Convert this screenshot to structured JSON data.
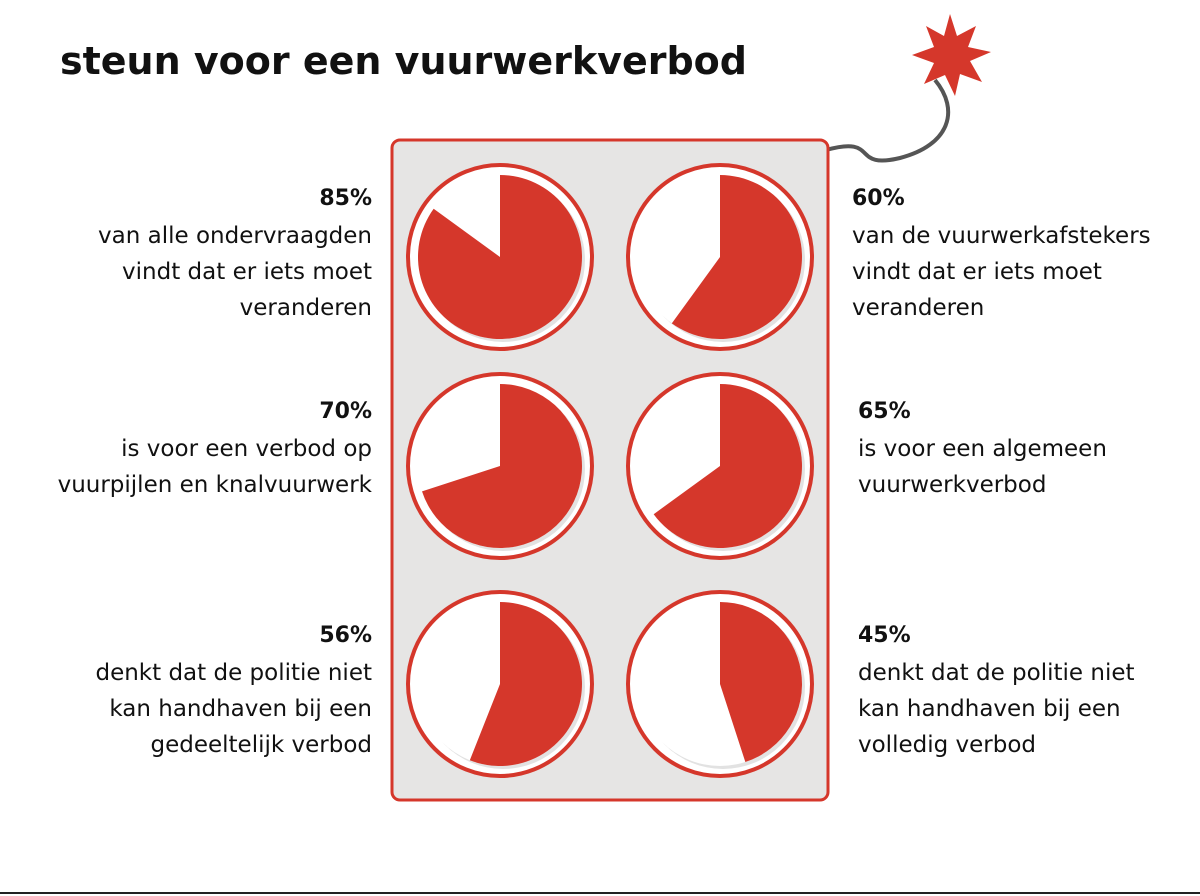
{
  "title": "steun voor een vuurwerkverbod",
  "chart_data": [
    {
      "type": "pie",
      "values": [
        85
      ],
      "value_labels": [
        "85%"
      ],
      "color": "#d5372b",
      "description": [
        "van alle ondervraagden",
        "vindt dat er iets moet",
        "veranderen"
      ]
    },
    {
      "type": "pie",
      "values": [
        60
      ],
      "value_labels": [
        "60%"
      ],
      "color": "#d5372b",
      "description": [
        "van de vuurwerkafstekers",
        "vindt dat er iets moet",
        "veranderen"
      ]
    },
    {
      "type": "pie",
      "values": [
        70
      ],
      "value_labels": [
        "70%"
      ],
      "color": "#d5372b",
      "description": [
        "is voor een verbod op",
        "vuurpijlen en knalvuurwerk"
      ]
    },
    {
      "type": "pie",
      "values": [
        65
      ],
      "value_labels": [
        "65%"
      ],
      "color": "#d5372b",
      "description": [
        "is voor een algemeen",
        "vuurwerkverbod"
      ]
    },
    {
      "type": "pie",
      "values": [
        56
      ],
      "value_labels": [
        "56%"
      ],
      "color": "#d5372b",
      "description": [
        "denkt dat de politie niet",
        "kan handhaven bij een",
        "gedeeltelijk verbod"
      ]
    },
    {
      "type": "pie",
      "values": [
        45
      ],
      "value_labels": [
        "45%"
      ],
      "color": "#d5372b",
      "description": [
        "denkt dat de politie niet",
        "kan handhaven bij een",
        "volledig verbod"
      ]
    }
  ]
}
